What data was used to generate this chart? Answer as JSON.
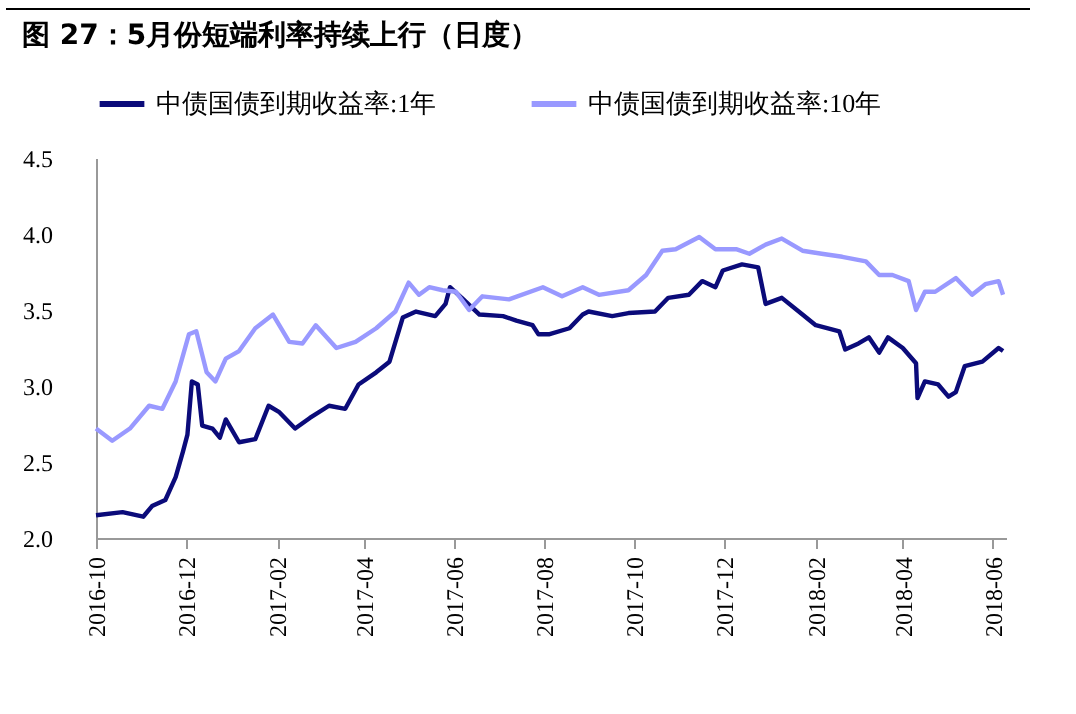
{
  "chart_data": {
    "type": "line",
    "title": "图 27：5月份短端利率持续上行（日度）",
    "x": [
      "2016-10-01",
      "2016-10-19",
      "2016-11-02",
      "2016-11-08",
      "2016-11-17",
      "2016-11-24",
      "2016-11-29",
      "2016-12-02",
      "2016-12-05",
      "2016-12-09",
      "2016-12-12",
      "2016-12-19",
      "2016-12-24",
      "2016-12-28",
      "2017-01-06",
      "2017-01-17",
      "2017-01-26",
      "2017-02-02",
      "2017-02-13",
      "2017-02-23",
      "2017-03-08",
      "2017-03-19",
      "2017-03-28",
      "2017-04-09",
      "2017-04-18",
      "2017-04-27",
      "2017-05-06",
      "2017-05-19",
      "2017-05-26",
      "2017-05-29",
      "2017-06-06",
      "2017-06-18",
      "2017-07-04",
      "2017-07-13",
      "2017-07-24",
      "2017-07-28",
      "2017-08-04",
      "2017-08-18",
      "2017-08-27",
      "2017-08-31",
      "2017-09-16",
      "2017-09-27",
      "2017-10-15",
      "2017-10-24",
      "2017-11-07",
      "2017-11-16",
      "2017-11-25",
      "2017-11-30",
      "2017-12-13",
      "2017-12-24",
      "2017-12-29",
      "2018-01-09",
      "2018-01-23",
      "2018-02-01",
      "2018-02-17",
      "2018-02-21",
      "2018-03-02",
      "2018-03-09",
      "2018-03-16",
      "2018-03-22",
      "2018-04-01",
      "2018-04-10",
      "2018-04-11",
      "2018-04-16",
      "2018-04-25",
      "2018-05-02",
      "2018-05-07",
      "2018-05-13",
      "2018-05-25",
      "2018-06-05",
      "2018-06-08"
    ],
    "series": [
      {
        "name": "中债国债到期收益率:1年",
        "color": "#0b0b7a",
        "values": [
          2.15,
          2.17,
          2.14,
          2.21,
          2.25,
          2.4,
          2.57,
          2.68,
          3.03,
          3.01,
          2.74,
          2.72,
          2.66,
          2.78,
          2.63,
          2.65,
          2.87,
          2.83,
          2.72,
          2.79,
          2.87,
          2.85,
          3.01,
          3.09,
          3.16,
          3.45,
          3.49,
          3.46,
          3.54,
          3.65,
          3.58,
          3.47,
          3.46,
          3.43,
          3.4,
          3.34,
          3.34,
          3.38,
          3.47,
          3.49,
          3.46,
          3.48,
          3.49,
          3.58,
          3.6,
          3.69,
          3.65,
          3.76,
          3.8,
          3.78,
          3.54,
          3.58,
          3.47,
          3.4,
          3.36,
          3.24,
          3.28,
          3.32,
          3.22,
          3.32,
          3.25,
          3.15,
          2.92,
          3.03,
          3.01,
          2.93,
          2.96,
          3.13,
          3.16,
          3.25,
          3.23
        ]
      },
      {
        "name": "中债国债到期收益率:10年",
        "color": "#9999ff",
        "x": [
          "2016-10-01",
          "2016-10-12",
          "2016-10-24",
          "2016-11-06",
          "2016-11-15",
          "2016-11-24",
          "2016-12-03",
          "2016-12-08",
          "2016-12-15",
          "2016-12-21",
          "2016-12-28",
          "2017-01-06",
          "2017-01-17",
          "2017-01-29",
          "2017-02-09",
          "2017-02-18",
          "2017-02-27",
          "2017-03-13",
          "2017-03-26",
          "2017-04-09",
          "2017-04-22",
          "2017-05-01",
          "2017-05-08",
          "2017-05-15",
          "2017-05-24",
          "2017-06-02",
          "2017-06-11",
          "2017-06-20",
          "2017-07-08",
          "2017-07-31",
          "2017-08-13",
          "2017-08-27",
          "2017-09-07",
          "2017-09-27",
          "2017-10-09",
          "2017-10-20",
          "2017-10-29",
          "2017-11-14",
          "2017-11-25",
          "2017-12-09",
          "2017-12-18",
          "2017-12-29",
          "2018-01-09",
          "2018-01-23",
          "2018-02-05",
          "2018-02-19",
          "2018-03-07",
          "2018-03-16",
          "2018-03-25",
          "2018-04-05",
          "2018-04-10",
          "2018-04-16",
          "2018-04-23",
          "2018-05-07",
          "2018-05-18",
          "2018-05-27",
          "2018-06-05",
          "2018-06-08"
        ],
        "values": [
          2.72,
          2.64,
          2.72,
          2.87,
          2.85,
          3.03,
          3.34,
          3.36,
          3.09,
          3.03,
          3.18,
          3.23,
          3.38,
          3.47,
          3.29,
          3.28,
          3.4,
          3.25,
          3.29,
          3.38,
          3.49,
          3.68,
          3.6,
          3.65,
          3.63,
          3.62,
          3.5,
          3.59,
          3.57,
          3.65,
          3.59,
          3.65,
          3.6,
          3.63,
          3.73,
          3.89,
          3.9,
          3.98,
          3.9,
          3.9,
          3.87,
          3.93,
          3.97,
          3.89,
          3.87,
          3.85,
          3.82,
          3.73,
          3.73,
          3.69,
          3.5,
          3.62,
          3.62,
          3.71,
          3.6,
          3.67,
          3.69,
          3.6
        ]
      }
    ],
    "xlim": [
      "2016-10-01",
      "2018-06-10"
    ],
    "xticks": [
      "2016-10",
      "2016-12",
      "2017-02",
      "2017-04",
      "2017-06",
      "2017-08",
      "2017-10",
      "2017-12",
      "2018-02",
      "2018-04",
      "2018-06"
    ],
    "ylim": [
      2.0,
      4.5
    ],
    "yticks": [
      {
        "value": 2.0,
        "label": "2.0"
      },
      {
        "value": 2.5,
        "label": "2.5"
      },
      {
        "value": 3.0,
        "label": "3.0"
      },
      {
        "value": 3.5,
        "label": "3.5"
      },
      {
        "value": 4.0,
        "label": "4.0"
      },
      {
        "value": 4.5,
        "label": "4.5"
      }
    ],
    "grid": false,
    "legend": "top",
    "marker": "none",
    "line_style": "solid"
  }
}
